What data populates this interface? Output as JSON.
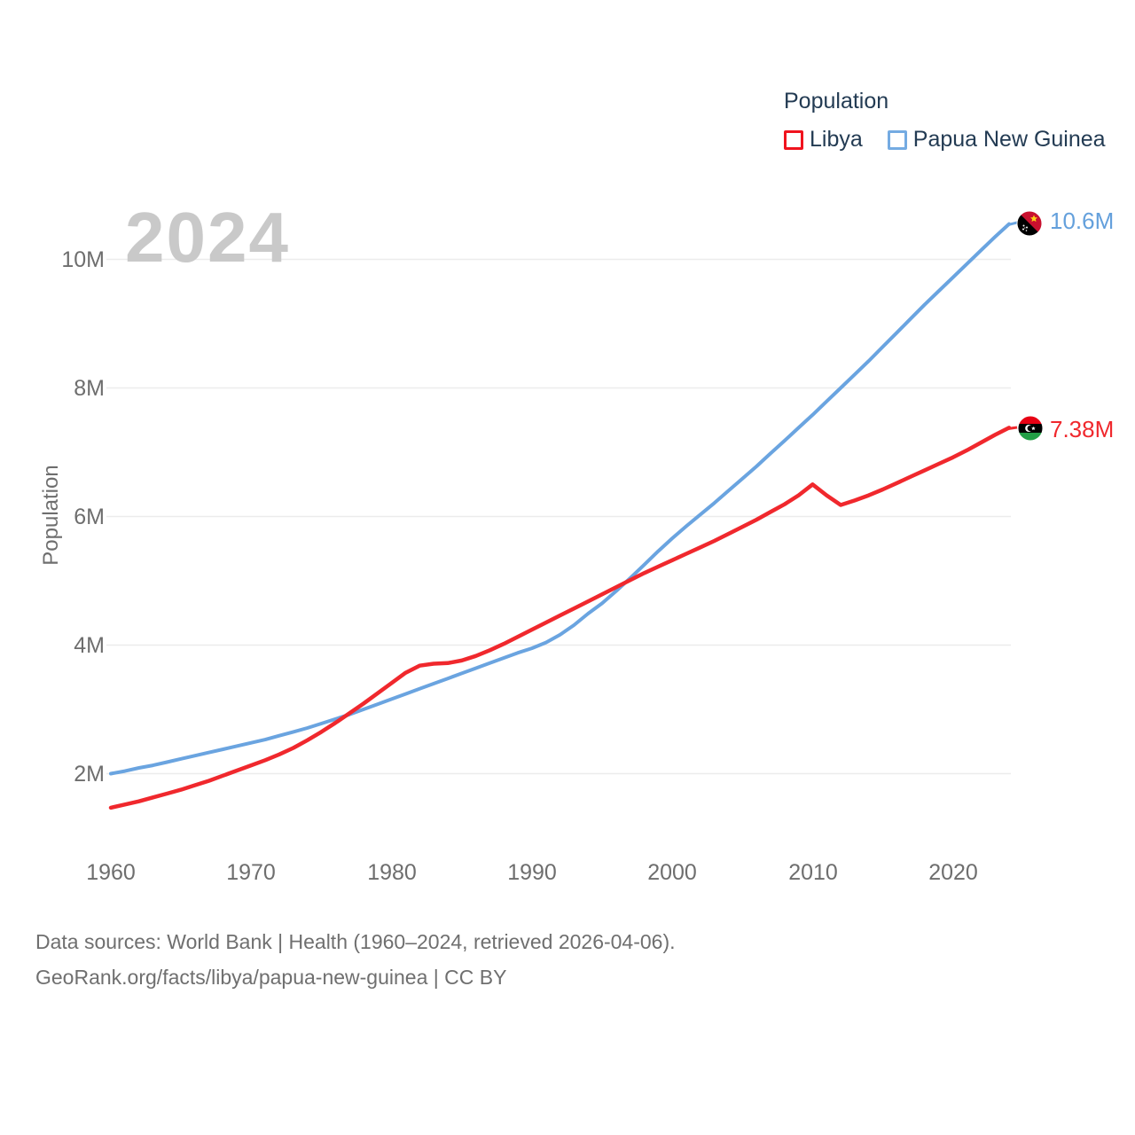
{
  "chart_data": {
    "type": "line",
    "year_watermark": "2024",
    "legend_title": "Population",
    "ylabel": "Population",
    "x_ticks": [
      "1960",
      "1970",
      "1980",
      "1990",
      "2000",
      "2010",
      "2020"
    ],
    "y_ticks": [
      "10M",
      "8M",
      "6M",
      "4M",
      "2M"
    ],
    "x_range": [
      1960,
      2024
    ],
    "ylim": [
      1.2,
      10.9
    ],
    "grid": "horizontal-only",
    "legend_position": "top-right",
    "colors": {
      "libya": "#f0282d",
      "papua_new_guinea": "#6aa4e0",
      "grid": "#ececec",
      "tick_text": "#6e6e6e",
      "legend_text": "#233b53",
      "watermark": "#c9c9c9"
    },
    "series": [
      {
        "name": "Libya",
        "color": "#f0282d",
        "end_label": "7.38M",
        "end_value_millions": 7.38,
        "flag": "libya-flag",
        "start_year": 1960,
        "values": [
          1.47,
          1.52,
          1.57,
          1.63,
          1.69,
          1.75,
          1.82,
          1.89,
          1.97,
          2.05,
          2.13,
          2.21,
          2.3,
          2.4,
          2.52,
          2.65,
          2.79,
          2.94,
          3.09,
          3.25,
          3.41,
          3.57,
          3.68,
          3.71,
          3.72,
          3.76,
          3.83,
          3.92,
          4.02,
          4.13,
          4.24,
          4.35,
          4.46,
          4.57,
          4.68,
          4.79,
          4.9,
          5.01,
          5.12,
          5.22,
          5.32,
          5.42,
          5.52,
          5.62,
          5.73,
          5.84,
          5.95,
          6.07,
          6.19,
          6.33,
          6.5,
          6.33,
          6.18,
          6.25,
          6.33,
          6.42,
          6.52,
          6.62,
          6.72,
          6.82,
          6.92,
          7.03,
          7.15,
          7.27,
          7.38
        ]
      },
      {
        "name": "Papua New Guinea",
        "color": "#6aa4e0",
        "end_label": "10.6M",
        "end_value_millions": 10.6,
        "flag": "papua-new-guinea-flag",
        "start_year": 1960,
        "values": [
          2.0,
          2.04,
          2.09,
          2.13,
          2.18,
          2.23,
          2.28,
          2.33,
          2.38,
          2.43,
          2.48,
          2.53,
          2.59,
          2.65,
          2.71,
          2.78,
          2.85,
          2.92,
          3.0,
          3.08,
          3.16,
          3.24,
          3.32,
          3.4,
          3.48,
          3.56,
          3.64,
          3.72,
          3.8,
          3.88,
          3.95,
          4.04,
          4.16,
          4.31,
          4.49,
          4.65,
          4.84,
          5.04,
          5.25,
          5.46,
          5.66,
          5.85,
          6.03,
          6.21,
          6.4,
          6.59,
          6.78,
          6.98,
          7.18,
          7.38,
          7.58,
          7.79,
          8.0,
          8.21,
          8.42,
          8.64,
          8.86,
          9.08,
          9.3,
          9.51,
          9.72,
          9.93,
          10.14,
          10.35,
          10.55
        ]
      }
    ]
  },
  "footer": {
    "line1": "Data sources: World Bank | Health (1960–2024, retrieved 2026-04-06).",
    "line2": "GeoRank.org/facts/libya/papua-new-guinea | CC BY"
  }
}
